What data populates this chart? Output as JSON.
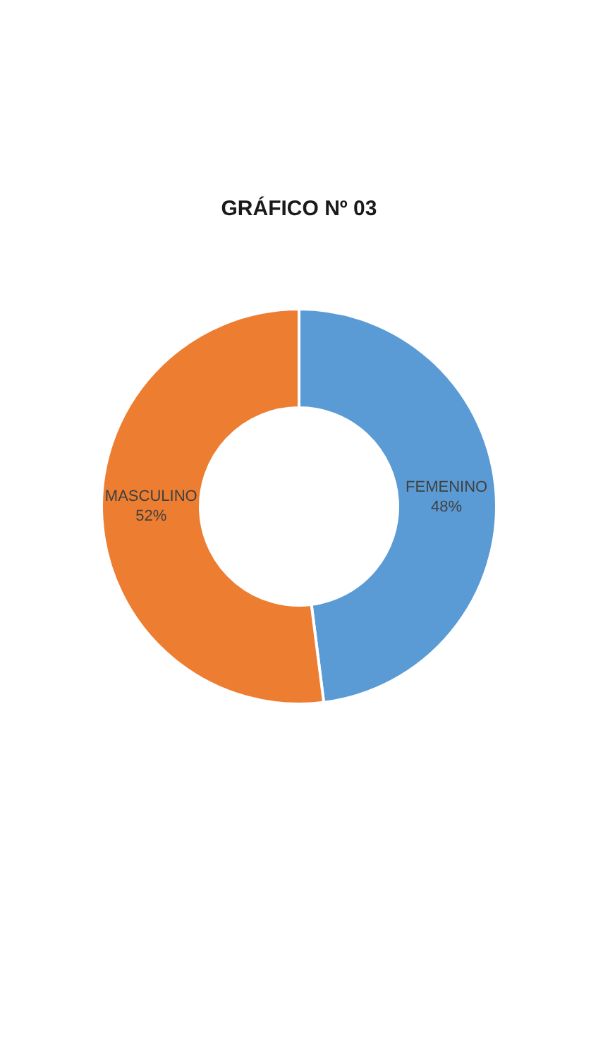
{
  "chart_data": {
    "type": "donut",
    "title": "GRÁFICO Nº 03",
    "categories": [
      "FEMENINO",
      "MASCULINO"
    ],
    "values": [
      48,
      52
    ],
    "value_labels": [
      "48%",
      "52%"
    ],
    "colors": [
      "#5b9bd5",
      "#ed7d31"
    ],
    "legend": false
  }
}
